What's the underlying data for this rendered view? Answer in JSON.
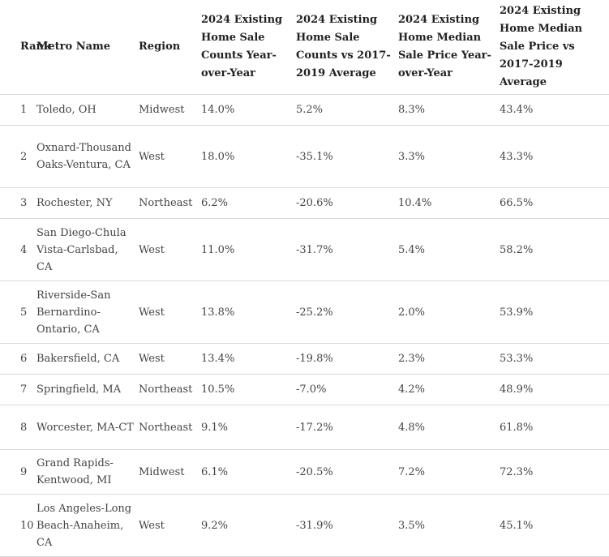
{
  "table": {
    "headers": [
      "Rank",
      "Metro Name",
      "Region",
      "2024 Existing Home Sale Counts Year-over-Year",
      "2024 Existing Home Sale Counts vs 2017-2019 Average",
      "2024 Existing Home Median Sale Price Year-over-Year",
      "2024 Existing Home Median Sale Price vs 2017-2019 Average"
    ],
    "rows": [
      [
        "1",
        "Toledo, OH",
        "Midwest",
        "14.0%",
        "5.2%",
        "8.3%",
        "43.4%"
      ],
      [
        "2",
        "Oxnard-Thousand Oaks-Ventura, CA",
        "West",
        "18.0%",
        "-35.1%",
        "3.3%",
        "43.3%"
      ],
      [
        "3",
        "Rochester, NY",
        "Northeast",
        "6.2%",
        "-20.6%",
        "10.4%",
        "66.5%"
      ],
      [
        "4",
        "San Diego-Chula Vista-Carlsbad, CA",
        "West",
        "11.0%",
        "-31.7%",
        "5.4%",
        "58.2%"
      ],
      [
        "5",
        "Riverside-San Bernardino-Ontario, CA",
        "West",
        "13.8%",
        "-25.2%",
        "2.0%",
        "53.9%"
      ],
      [
        "6",
        "Bakersfield, CA",
        "West",
        "13.4%",
        "-19.8%",
        "2.3%",
        "53.3%"
      ],
      [
        "7",
        "Springfield, MA",
        "Northeast",
        "10.5%",
        "-7.0%",
        "4.2%",
        "48.9%"
      ],
      [
        "8",
        "Worcester, MA-CT",
        "Northeast",
        "9.1%",
        "-17.2%",
        "4.8%",
        "61.8%"
      ],
      [
        "9",
        "Grand Rapids-Kentwood, MI",
        "Midwest",
        "6.1%",
        "-20.5%",
        "7.2%",
        "72.3%"
      ],
      [
        "10",
        "Los Angeles-Long Beach-Anaheim, CA",
        "West",
        "9.2%",
        "-31.9%",
        "3.5%",
        "45.1%"
      ]
    ]
  }
}
